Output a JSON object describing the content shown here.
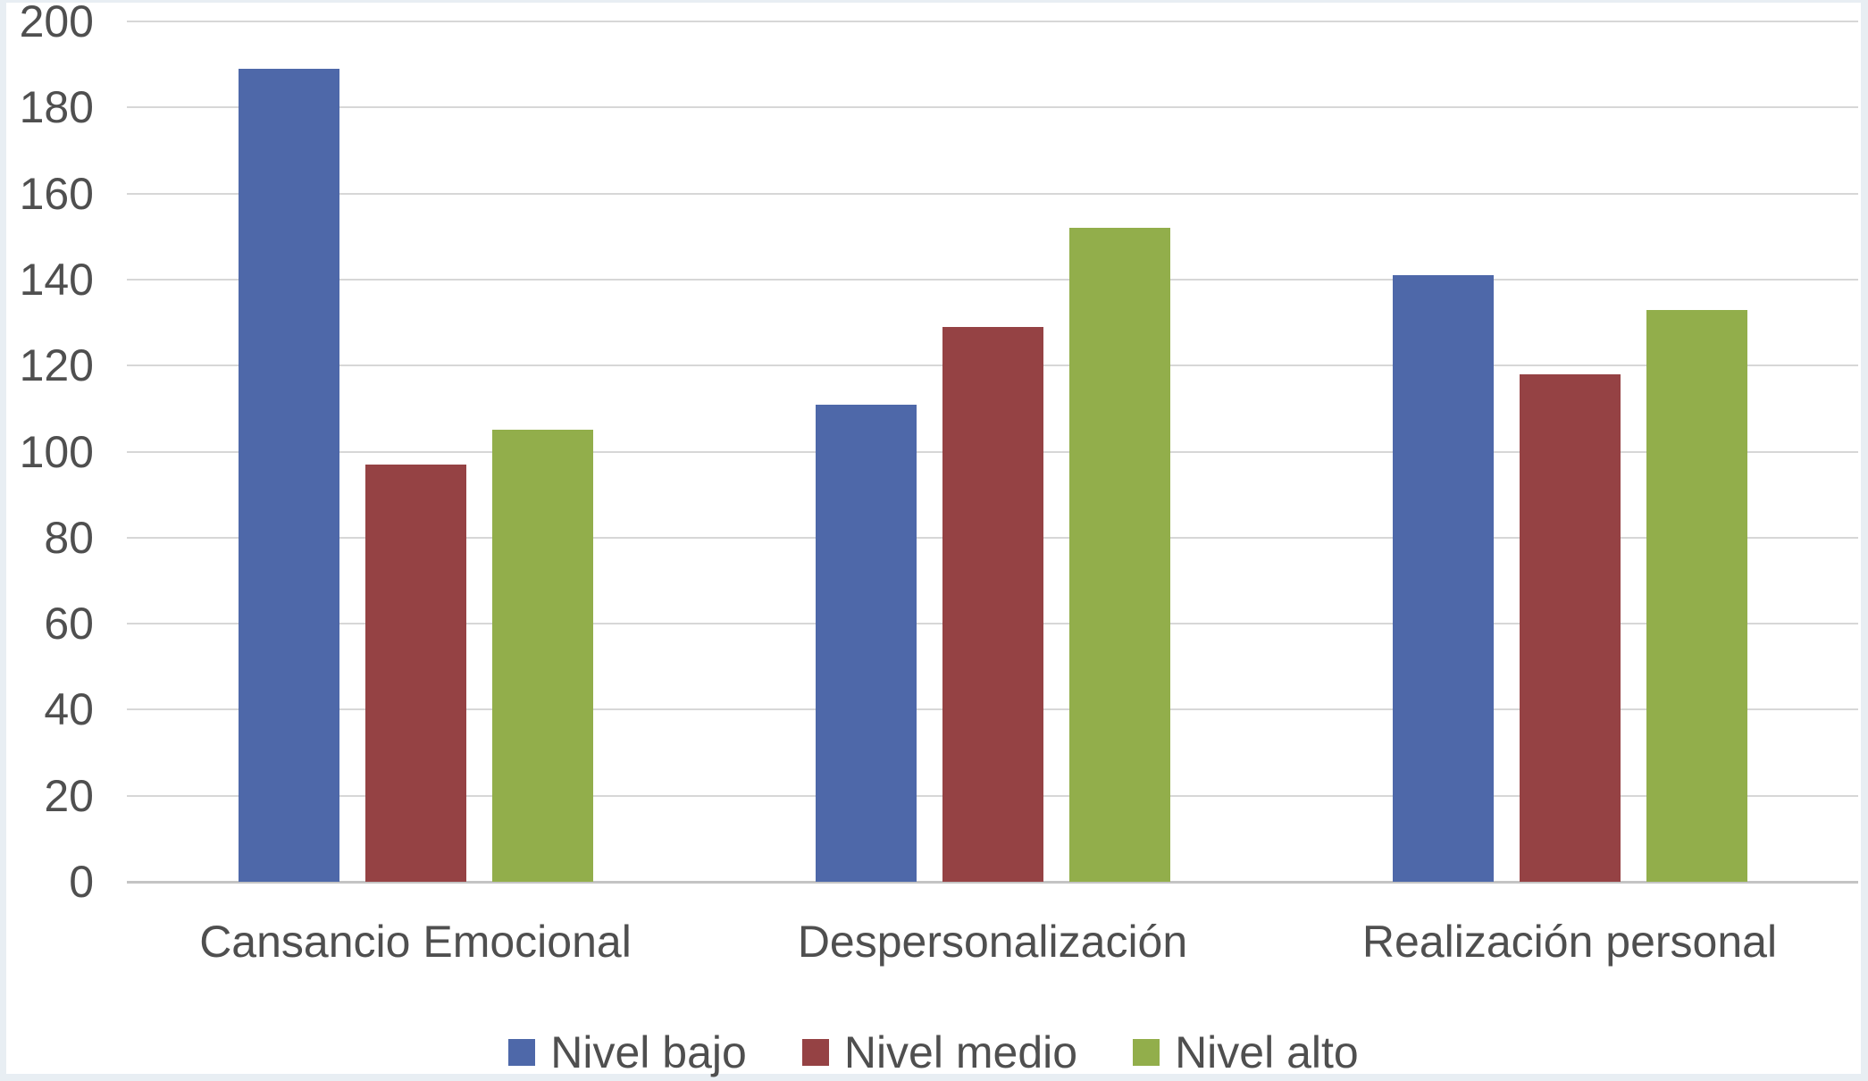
{
  "chart_data": {
    "type": "bar",
    "title": "",
    "categories": [
      "Cansancio Emocional",
      "Despersonalización",
      "Realización personal"
    ],
    "series": [
      {
        "name": "Nivel bajo",
        "color": "#4e68a9",
        "values": [
          189,
          111,
          141
        ]
      },
      {
        "name": "Nivel medio",
        "color": "#954244",
        "values": [
          97,
          129,
          118
        ]
      },
      {
        "name": "Nivel alto",
        "color": "#92ae4b",
        "values": [
          105,
          152,
          133
        ]
      }
    ],
    "ylim": [
      0,
      200
    ],
    "ytick_step": 20,
    "yticks": [
      0,
      20,
      40,
      60,
      80,
      100,
      120,
      140,
      160,
      180,
      200
    ],
    "grid": true,
    "legend_position": "bottom",
    "plot_background": "#ffffff",
    "page_background": "#e8eef3",
    "gridline_color": "#d7d7d7",
    "text_color": "#4f4f4f"
  }
}
